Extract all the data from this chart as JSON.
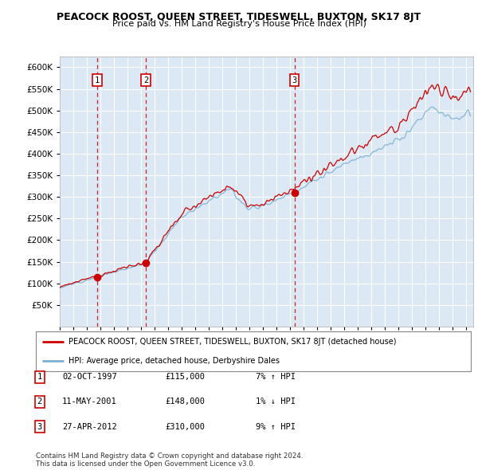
{
  "title": "PEACOCK ROOST, QUEEN STREET, TIDESWELL, BUXTON, SK17 8JT",
  "subtitle": "Price paid vs. HM Land Registry's House Price Index (HPI)",
  "ylim": [
    0,
    625000
  ],
  "yticks": [
    0,
    50000,
    100000,
    150000,
    200000,
    250000,
    300000,
    350000,
    400000,
    450000,
    500000,
    550000,
    600000
  ],
  "xlim_start": 1995.0,
  "xlim_end": 2025.5,
  "bg_color": "#dce9f5",
  "grid_color": "#ffffff",
  "sale_dates": [
    1997.75,
    2001.36,
    2012.32
  ],
  "sale_prices": [
    115000,
    148000,
    310000
  ],
  "sale_labels": [
    "1",
    "2",
    "3"
  ],
  "legend_red": "PEACOCK ROOST, QUEEN STREET, TIDESWELL, BUXTON, SK17 8JT (detached house)",
  "legend_blue": "HPI: Average price, detached house, Derbyshire Dales",
  "table_rows": [
    {
      "num": "1",
      "date": "02-OCT-1997",
      "price": "£115,000",
      "change": "7% ↑ HPI"
    },
    {
      "num": "2",
      "date": "11-MAY-2001",
      "price": "£148,000",
      "change": "1% ↓ HPI"
    },
    {
      "num": "3",
      "date": "27-APR-2012",
      "price": "£310,000",
      "change": "9% ↑ HPI"
    }
  ],
  "footer": "Contains HM Land Registry data © Crown copyright and database right 2024.\nThis data is licensed under the Open Government Licence v3.0.",
  "red_color": "#cc0000",
  "blue_color": "#7ab0d4",
  "dot_color": "#cc0000",
  "vline_color": "#cc0000",
  "box_color": "#cc0000"
}
